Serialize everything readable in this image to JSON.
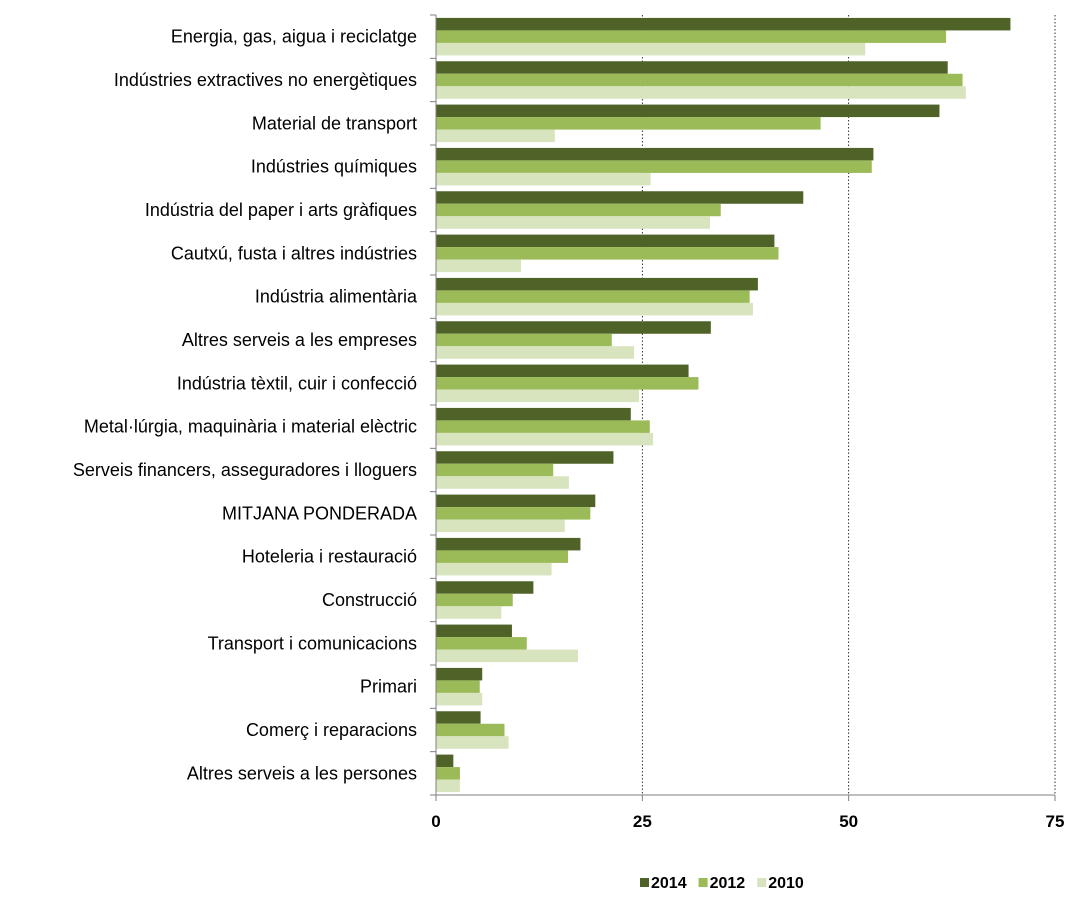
{
  "chart_data": {
    "type": "bar",
    "orientation": "horizontal",
    "categories": [
      "Energia, gas, aigua i reciclatge",
      "Indústries extractives no energètiques",
      "Material de transport",
      "Indústries químiques",
      "Indústria del paper i arts gràfiques",
      "Cautxú, fusta i altres indústries",
      "Indústria alimentària",
      "Altres serveis a les empreses",
      "Indústria tèxtil, cuir i confecció",
      "Metal·lúrgia, maquinària i material elèctric",
      "Serveis financers, asseguradores i lloguers",
      "MITJANA PONDERADA",
      "Hoteleria i restauració",
      "Construcció",
      "Transport i comunicacions",
      "Primari",
      "Comerç i reparacions",
      "Altres serveis a les persones"
    ],
    "series": [
      {
        "name": "2014",
        "color": "#4f6228",
        "values": [
          69.6,
          62.0,
          61.0,
          53.0,
          44.5,
          41.0,
          39.0,
          33.3,
          30.6,
          23.6,
          21.5,
          19.3,
          17.5,
          11.8,
          9.2,
          5.6,
          5.4,
          2.1
        ]
      },
      {
        "name": "2012",
        "color": "#9bbb59",
        "values": [
          61.8,
          63.8,
          46.6,
          52.8,
          34.5,
          41.5,
          38.0,
          21.3,
          31.8,
          25.9,
          14.2,
          18.7,
          16.0,
          9.3,
          11.0,
          5.3,
          8.3,
          2.9
        ]
      },
      {
        "name": "2010",
        "color": "#d7e4bd",
        "values": [
          52.0,
          64.2,
          14.4,
          26.0,
          33.2,
          10.3,
          38.4,
          24.0,
          24.6,
          26.3,
          16.1,
          15.6,
          14.0,
          7.9,
          17.2,
          5.6,
          8.8,
          2.9
        ]
      }
    ],
    "xlim": [
      0,
      75
    ],
    "xticks": [
      "0",
      "25",
      "50",
      "75"
    ],
    "grid": "vertical dotted at 25, 50, 75",
    "legend_position": "bottom",
    "title": "",
    "xlabel": "",
    "ylabel": ""
  }
}
